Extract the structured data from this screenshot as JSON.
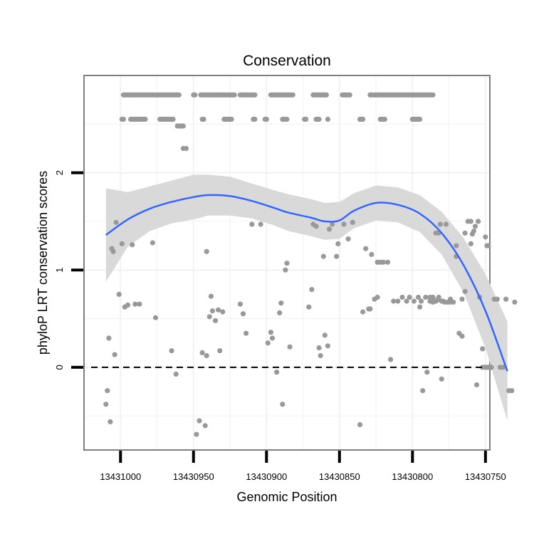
{
  "chart_data": {
    "type": "scatter",
    "title": "Conservation",
    "xlabel": "Genomic Position",
    "ylabel": "phyloP LRT conservation scores",
    "x_reversed": true,
    "xlim": [
      13431025,
      13430747
    ],
    "ylim": [
      -0.85,
      3.0
    ],
    "x_ticks": [
      13431000,
      13430950,
      13430900,
      13430850,
      13430800,
      13430750
    ],
    "x_tick_labels": [
      "13431000",
      "13430950",
      "13430900",
      "13430850",
      "13430800",
      "13430750"
    ],
    "y_ticks": [
      0,
      1,
      2
    ],
    "y_tick_labels": [
      "0",
      "1",
      "2"
    ],
    "reference_line": {
      "y": 0,
      "style": "dashed"
    },
    "grid": true,
    "colors": {
      "points": "#999999",
      "smooth": "#3366ff",
      "ribbon": "#d9d9d9",
      "panel_border": "#7f7f7f",
      "grid": "#f2f2f2"
    },
    "points": [
      [
        13431010,
        -0.38
      ],
      [
        13431009,
        -0.24
      ],
      [
        13431008,
        0.3
      ],
      [
        13431007,
        -0.56
      ],
      [
        13431006,
        1.22
      ],
      [
        13431005,
        1.19
      ],
      [
        13431004,
        0.13
      ],
      [
        13431003,
        1.49
      ],
      [
        13431001,
        0.75
      ],
      [
        13430999,
        1.27
      ],
      [
        13430997,
        0.62
      ],
      [
        13430995,
        0.64
      ],
      [
        13430992,
        1.26
      ],
      [
        13430990,
        0.65
      ],
      [
        13430987,
        0.65
      ],
      [
        13430978,
        1.28
      ],
      [
        13430976,
        0.51
      ],
      [
        13430965,
        0.17
      ],
      [
        13430962,
        -0.07
      ],
      [
        13430957,
        2.25
      ],
      [
        13430955,
        2.25
      ],
      [
        13430948,
        -0.69
      ],
      [
        13430946,
        -0.55
      ],
      [
        13430944,
        0.15
      ],
      [
        13430942,
        -0.6
      ],
      [
        13430941,
        1.19
      ],
      [
        13430941,
        0.12
      ],
      [
        13430939,
        0.52
      ],
      [
        13430938,
        0.73
      ],
      [
        13430937,
        0.58
      ],
      [
        13430935,
        0.48
      ],
      [
        13430933,
        0.59
      ],
      [
        13430932,
        0.17
      ],
      [
        13430930,
        0.57
      ],
      [
        13430918,
        0.65
      ],
      [
        13430916,
        0.55
      ],
      [
        13430914,
        0.35
      ],
      [
        13430910,
        1.47
      ],
      [
        13430904,
        1.47
      ],
      [
        13430899,
        0.25
      ],
      [
        13430897,
        0.36
      ],
      [
        13430896,
        0.3
      ],
      [
        13430893,
        -0.05
      ],
      [
        13430891,
        0.56
      ],
      [
        13430890,
        0.66
      ],
      [
        13430889,
        -0.38
      ],
      [
        13430887,
        1.0
      ],
      [
        13430886,
        1.07
      ],
      [
        13430884,
        0.21
      ],
      [
        13430871,
        0.62
      ],
      [
        13430869,
        0.8
      ],
      [
        13430868,
        1.47
      ],
      [
        13430866,
        1.45
      ],
      [
        13430864,
        0.2
      ],
      [
        13430863,
        0.12
      ],
      [
        13430861,
        1.14
      ],
      [
        13430860,
        0.33
      ],
      [
        13430858,
        0.22
      ],
      [
        13430857,
        1.42
      ],
      [
        13430855,
        1.47
      ],
      [
        13430852,
        1.14
      ],
      [
        13430851,
        1.27
      ],
      [
        13430847,
        1.47
      ],
      [
        13430844,
        1.32
      ],
      [
        13430841,
        1.49
      ],
      [
        13430836,
        -0.59
      ],
      [
        13430834,
        0.57
      ],
      [
        13430832,
        1.22
      ],
      [
        13430830,
        0.6
      ],
      [
        13430828,
        1.16
      ],
      [
        13430826,
        0.7
      ],
      [
        13430824,
        1.08
      ],
      [
        13430822,
        1.08
      ],
      [
        13430820,
        1.08
      ],
      [
        13430817,
        1.08
      ],
      [
        13430815,
        0.08
      ],
      [
        13430813,
        0.68
      ],
      [
        13430810,
        0.68
      ],
      [
        13430807,
        0.72
      ],
      [
        13430804,
        0.68
      ],
      [
        13430802,
        0.72
      ],
      [
        13430799,
        0.68
      ],
      [
        13430796,
        0.72
      ],
      [
        13430794,
        0.68
      ],
      [
        13430791,
        0.72
      ],
      [
        13430788,
        0.68
      ],
      [
        13430786,
        0.72
      ],
      [
        13430784,
        0.68
      ],
      [
        13430782,
        0.72
      ],
      [
        13430780,
        0.68
      ],
      [
        13430777,
        1.47
      ],
      [
        13430774,
        0.7
      ],
      [
        13430770,
        1.25
      ],
      [
        13430766,
        0.7
      ],
      [
        13430764,
        0.78
      ],
      [
        13430760,
        1.27
      ],
      [
        13430759,
        1.37
      ],
      [
        13430757,
        1.45
      ],
      [
        13430755,
        1.5
      ],
      [
        13430752,
        0.0
      ],
      [
        13430750,
        0.0
      ],
      [
        13430749,
        0.0
      ],
      [
        13430748,
        0.0
      ],
      [
        13430795,
        0.62
      ],
      [
        13430793,
        -0.24
      ],
      [
        13430790,
        -0.05
      ],
      [
        13430788,
        0.72
      ],
      [
        13430786,
        0.67
      ],
      [
        13430784,
        1.38
      ],
      [
        13430782,
        1.38
      ],
      [
        13430780,
        -0.12
      ],
      [
        13430778,
        0.67
      ],
      [
        13430776,
        0.67
      ],
      [
        13430774,
        0.67
      ],
      [
        13430772,
        0.67
      ],
      [
        13430770,
        1.14
      ],
      [
        13430768,
        0.35
      ],
      [
        13430766,
        0.32
      ],
      [
        13430764,
        1.38
      ],
      [
        13430762,
        1.5
      ],
      [
        13430760,
        1.5
      ],
      [
        13430758,
        1.4
      ],
      [
        13430756,
        -0.18
      ],
      [
        13430754,
        0.72
      ],
      [
        13430752,
        0.19
      ],
      [
        13430750,
        1.34
      ],
      [
        13430749,
        1.25
      ],
      [
        13430748,
        1.25
      ],
      [
        13430746,
        0.0
      ],
      [
        13430744,
        0.7
      ],
      [
        13430742,
        0.7
      ],
      [
        13430740,
        0.0
      ],
      [
        13430738,
        0.0
      ],
      [
        13430736,
        0.7
      ],
      [
        13430734,
        -0.24
      ],
      [
        13430732,
        -0.24
      ],
      [
        13430730,
        0.67
      ],
      [
        13430779,
        0.68
      ],
      [
        13430783,
        0.69
      ],
      [
        13430781,
        1.47
      ],
      [
        13430829,
        0.6
      ],
      [
        13430824,
        0.72
      ]
    ],
    "top_rows": [
      {
        "y": 2.8,
        "x_ranges": [
          [
            13430998,
            13430960
          ],
          [
            13430950,
            13430949
          ],
          [
            13430945,
            13430922
          ],
          [
            13430918,
            13430908
          ],
          [
            13430897,
            13430882
          ],
          [
            13430868,
            13430859
          ],
          [
            13430848,
            13430843
          ],
          [
            13430829,
            13430786
          ]
        ]
      },
      {
        "y": 2.55,
        "x_ranges": [
          [
            13430999,
            13430998
          ],
          [
            13430993,
            13430983
          ],
          [
            13430973,
            13430964
          ],
          [
            13430944,
            13430943
          ],
          [
            13430929,
            13430924
          ],
          [
            13430909,
            13430908
          ],
          [
            13430901,
            13430900
          ],
          [
            13430889,
            13430886
          ],
          [
            13430874,
            13430873
          ],
          [
            13430866,
            13430864
          ],
          [
            13430858,
            13430858
          ],
          [
            13430836,
            13430834
          ],
          [
            13430822,
            13430819
          ],
          [
            13430800,
            13430795
          ]
        ]
      },
      {
        "y": 2.48,
        "x_ranges": [
          [
            13430961,
            13430957
          ]
        ]
      }
    ],
    "smooth": {
      "x": [
        13431010,
        13430995,
        13430980,
        13430965,
        13430950,
        13430940,
        13430925,
        13430910,
        13430895,
        13430885,
        13430870,
        13430860,
        13430850,
        13430840,
        13430825,
        13430810,
        13430795,
        13430780,
        13430765,
        13430750,
        13430735
      ],
      "y": [
        1.36,
        1.52,
        1.63,
        1.7,
        1.75,
        1.77,
        1.76,
        1.71,
        1.64,
        1.59,
        1.54,
        1.5,
        1.51,
        1.61,
        1.69,
        1.67,
        1.58,
        1.38,
        1.05,
        0.58,
        -0.04
      ],
      "lower": [
        0.88,
        1.24,
        1.4,
        1.48,
        1.52,
        1.56,
        1.56,
        1.53,
        1.46,
        1.4,
        1.35,
        1.31,
        1.32,
        1.43,
        1.51,
        1.49,
        1.39,
        1.16,
        0.77,
        0.2,
        -0.55
      ],
      "upper": [
        1.84,
        1.8,
        1.86,
        1.92,
        1.98,
        1.98,
        1.96,
        1.89,
        1.82,
        1.78,
        1.73,
        1.69,
        1.7,
        1.79,
        1.87,
        1.85,
        1.77,
        1.6,
        1.33,
        0.96,
        0.47
      ]
    }
  }
}
